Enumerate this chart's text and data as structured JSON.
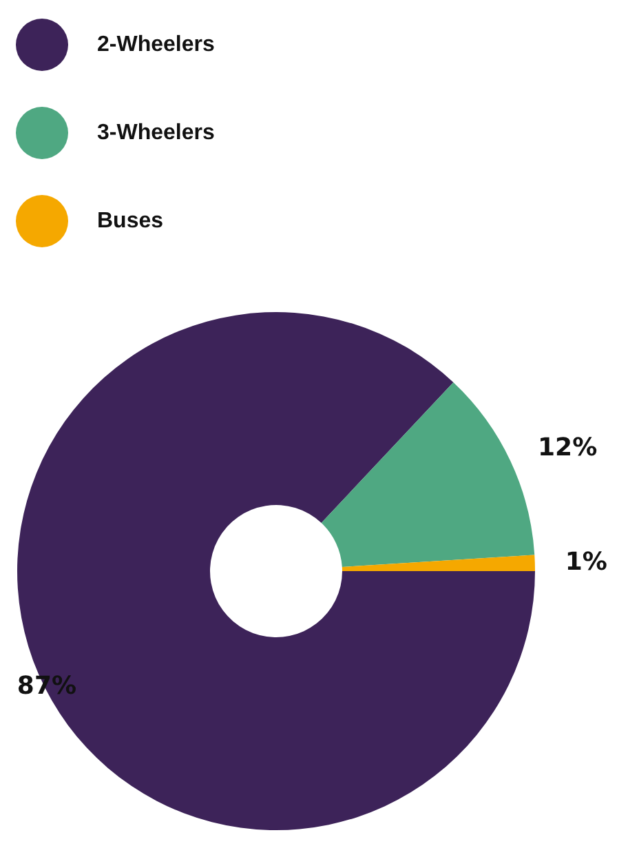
{
  "chart_data": {
    "type": "donut",
    "categories": [
      "2-Wheelers",
      "3-Wheelers",
      "Buses"
    ],
    "values": [
      87,
      12,
      1
    ],
    "colors": [
      "#3d2359",
      "#4fa882",
      "#f5a800"
    ],
    "value_labels": [
      "87%",
      "12%",
      "1%"
    ],
    "legend": "top left"
  }
}
